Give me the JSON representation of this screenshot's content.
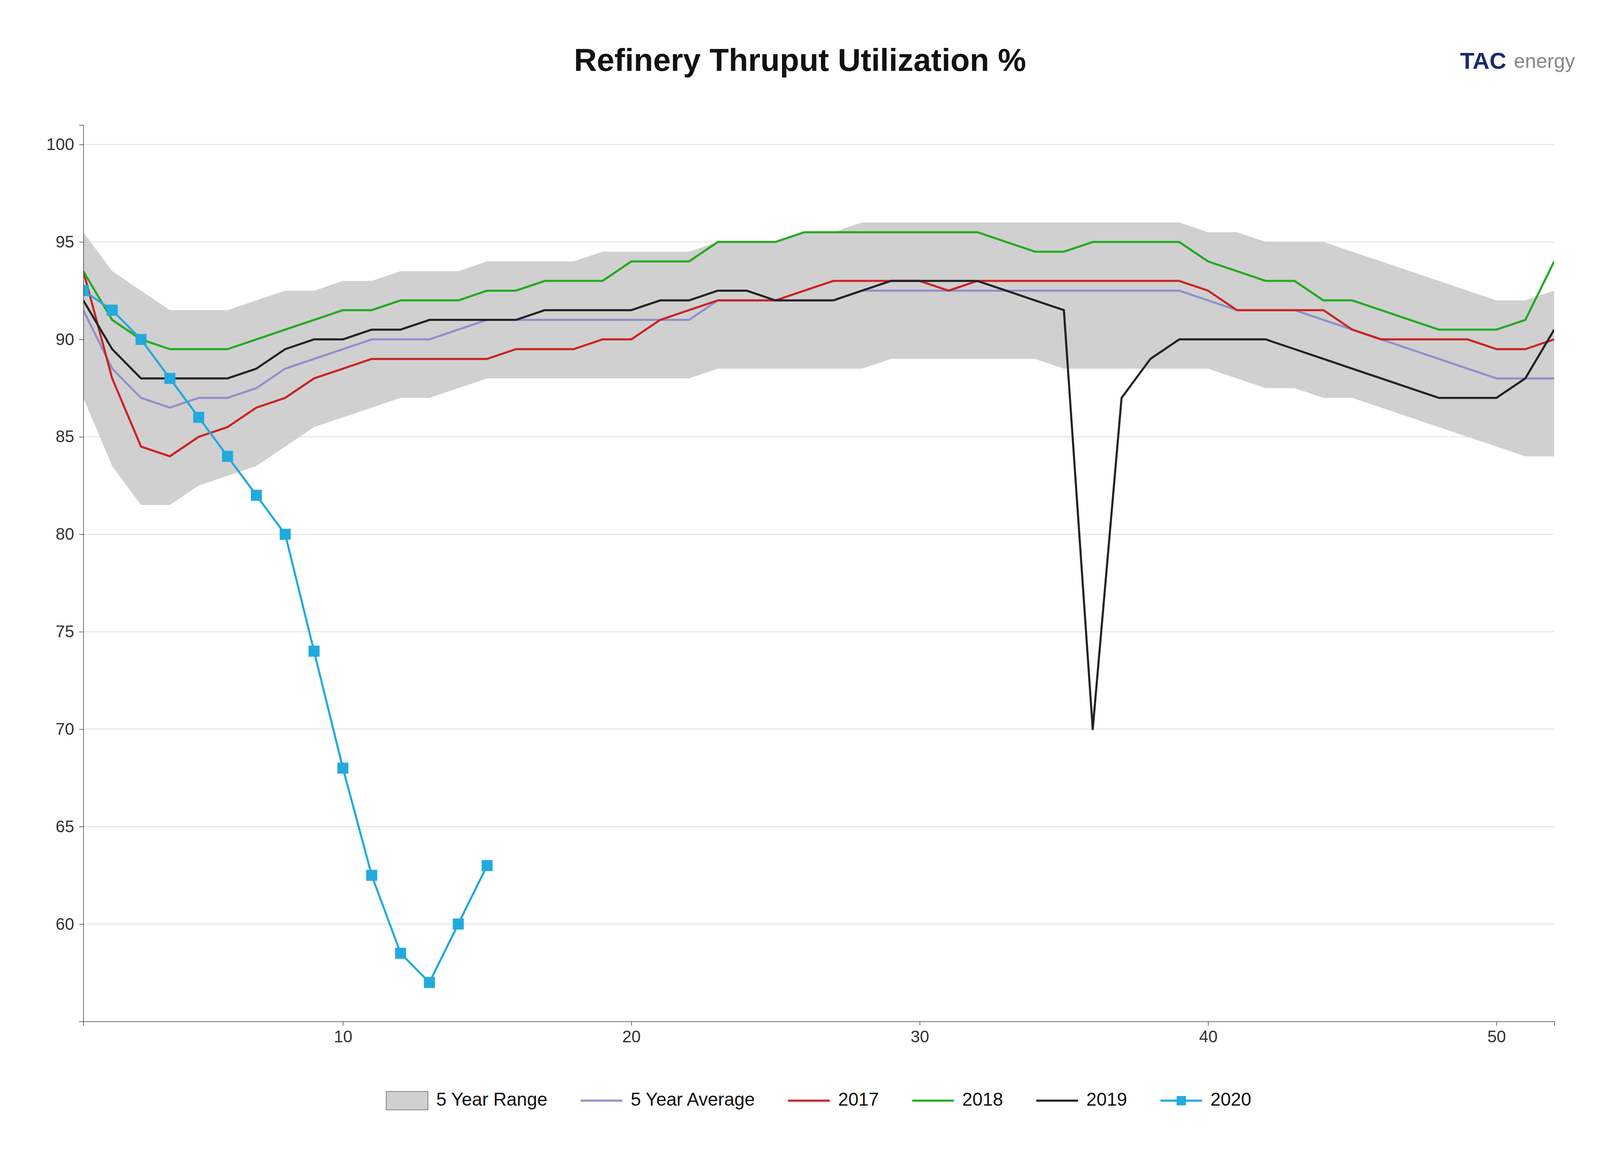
{
  "chart_data": {
    "type": "line",
    "title": "Refinery Thruput Utilization %",
    "annotations": [
      {
        "text": "TAC",
        "color": "#1a2a6e"
      },
      {
        "text": "energy",
        "color": "#888888"
      }
    ],
    "x": [
      1,
      2,
      3,
      4,
      5,
      6,
      7,
      8,
      9,
      10,
      11,
      12,
      13,
      14,
      15,
      16,
      17,
      18,
      19,
      20,
      21,
      22,
      23,
      24,
      25,
      26,
      27,
      28,
      29,
      30,
      31,
      32,
      33,
      34,
      35,
      36,
      37,
      38,
      39,
      40,
      41,
      42,
      43,
      44,
      45,
      46,
      47,
      48,
      49,
      50,
      51,
      52
    ],
    "xlim": [
      1,
      52
    ],
    "xticks": [
      10,
      20,
      30,
      40,
      50
    ],
    "ylim": [
      55,
      101
    ],
    "yticks": [
      60,
      65,
      70,
      75,
      80,
      85,
      90,
      95,
      100
    ],
    "grid": true,
    "legend": "bottom",
    "series": [
      {
        "name": "5 Year Range",
        "type": "band",
        "color": "#c8c8c8",
        "upper": [
          95.5,
          93.5,
          92.5,
          91.5,
          91.5,
          91.5,
          92.0,
          92.5,
          92.5,
          93.0,
          93.0,
          93.5,
          93.5,
          93.5,
          94.0,
          94.0,
          94.0,
          94.0,
          94.5,
          94.5,
          94.5,
          94.5,
          95.0,
          95.0,
          95.0,
          95.5,
          95.5,
          96.0,
          96.0,
          96.0,
          96.0,
          96.0,
          96.0,
          96.0,
          96.0,
          96.0,
          96.0,
          96.0,
          96.0,
          95.5,
          95.5,
          95.0,
          95.0,
          95.0,
          94.5,
          94.0,
          93.5,
          93.0,
          92.5,
          92.0,
          92.0,
          92.5
        ],
        "lower": [
          87.0,
          83.5,
          81.5,
          81.5,
          82.5,
          83.0,
          83.5,
          84.5,
          85.5,
          86.0,
          86.5,
          87.0,
          87.0,
          87.5,
          88.0,
          88.0,
          88.0,
          88.0,
          88.0,
          88.0,
          88.0,
          88.0,
          88.5,
          88.5,
          88.5,
          88.5,
          88.5,
          88.5,
          89.0,
          89.0,
          89.0,
          89.0,
          89.0,
          89.0,
          88.5,
          88.5,
          88.5,
          88.5,
          88.5,
          88.5,
          88.0,
          87.5,
          87.5,
          87.0,
          87.0,
          86.5,
          86.0,
          85.5,
          85.0,
          84.5,
          84.0,
          84.0
        ]
      },
      {
        "name": "5 Year Average",
        "type": "line",
        "color": "#9090cc",
        "values": [
          91.5,
          88.5,
          87.0,
          86.5,
          87.0,
          87.0,
          87.5,
          88.5,
          89.0,
          89.5,
          90.0,
          90.0,
          90.0,
          90.5,
          91.0,
          91.0,
          91.0,
          91.0,
          91.0,
          91.0,
          91.0,
          91.0,
          92.0,
          92.0,
          92.0,
          92.0,
          92.0,
          92.5,
          92.5,
          92.5,
          92.5,
          92.5,
          92.5,
          92.5,
          92.5,
          92.5,
          92.5,
          92.5,
          92.5,
          92.0,
          91.5,
          91.5,
          91.5,
          91.0,
          90.5,
          90.0,
          89.5,
          89.0,
          88.5,
          88.0,
          88.0,
          88.0
        ]
      },
      {
        "name": "2017",
        "type": "line",
        "color": "#cc2222",
        "values": [
          93.5,
          88.0,
          84.5,
          84.0,
          85.0,
          85.5,
          86.5,
          87.0,
          88.0,
          88.5,
          89.0,
          89.0,
          89.0,
          89.0,
          89.0,
          89.5,
          89.5,
          89.5,
          90.0,
          90.0,
          91.0,
          91.5,
          92.0,
          92.0,
          92.0,
          92.5,
          93.0,
          93.0,
          93.0,
          93.0,
          92.5,
          93.0,
          93.0,
          93.0,
          93.0,
          93.0,
          93.0,
          93.0,
          93.0,
          92.5,
          91.5,
          91.5,
          91.5,
          91.5,
          90.5,
          90.0,
          90.0,
          90.0,
          90.0,
          89.5,
          89.5,
          90.0
        ]
      },
      {
        "name": "2018",
        "type": "line",
        "color": "#22aa22",
        "values": [
          93.5,
          91.0,
          90.0,
          89.5,
          89.5,
          89.5,
          90.0,
          90.5,
          91.0,
          91.5,
          91.5,
          92.0,
          92.0,
          92.0,
          92.5,
          92.5,
          93.0,
          93.0,
          93.0,
          94.0,
          94.0,
          94.0,
          95.0,
          95.0,
          95.0,
          95.5,
          95.5,
          95.5,
          95.5,
          95.5,
          95.5,
          95.5,
          95.0,
          94.5,
          94.5,
          95.0,
          95.0,
          95.0,
          95.0,
          94.0,
          93.5,
          93.0,
          93.0,
          92.0,
          92.0,
          91.5,
          91.0,
          90.5,
          90.5,
          90.5,
          91.0,
          94.0
        ]
      },
      {
        "name": "2019",
        "type": "line",
        "color": "#222222",
        "values": [
          92.0,
          89.5,
          88.0,
          88.0,
          88.0,
          88.0,
          88.5,
          89.5,
          90.0,
          90.0,
          90.5,
          90.5,
          91.0,
          91.0,
          91.0,
          91.0,
          91.5,
          91.5,
          91.5,
          91.5,
          92.0,
          92.0,
          92.5,
          92.5,
          92.0,
          92.0,
          92.0,
          92.5,
          93.0,
          93.0,
          93.0,
          93.0,
          92.5,
          92.0,
          91.5,
          70.0,
          87.0,
          89.0,
          90.0,
          90.0,
          90.0,
          90.0,
          89.5,
          89.0,
          88.5,
          88.0,
          87.5,
          87.0,
          87.0,
          87.0,
          88.0,
          90.5
        ]
      },
      {
        "name": "2020",
        "type": "line",
        "color": "#22aadd",
        "marker": "square",
        "values": [
          92.5,
          91.5,
          90.0,
          88.0,
          86.0,
          84.0,
          82.0,
          80.0,
          74.0,
          68.0,
          62.5,
          58.5,
          57.0,
          60.0,
          63.0,
          null,
          null,
          null,
          null,
          null,
          null,
          null,
          null,
          null,
          null,
          null,
          null,
          null,
          null,
          null,
          null,
          null,
          null,
          null,
          null,
          null,
          null,
          null,
          null,
          null,
          null,
          null,
          null,
          null,
          null,
          null,
          null,
          null,
          null,
          null,
          null,
          null
        ]
      }
    ]
  }
}
